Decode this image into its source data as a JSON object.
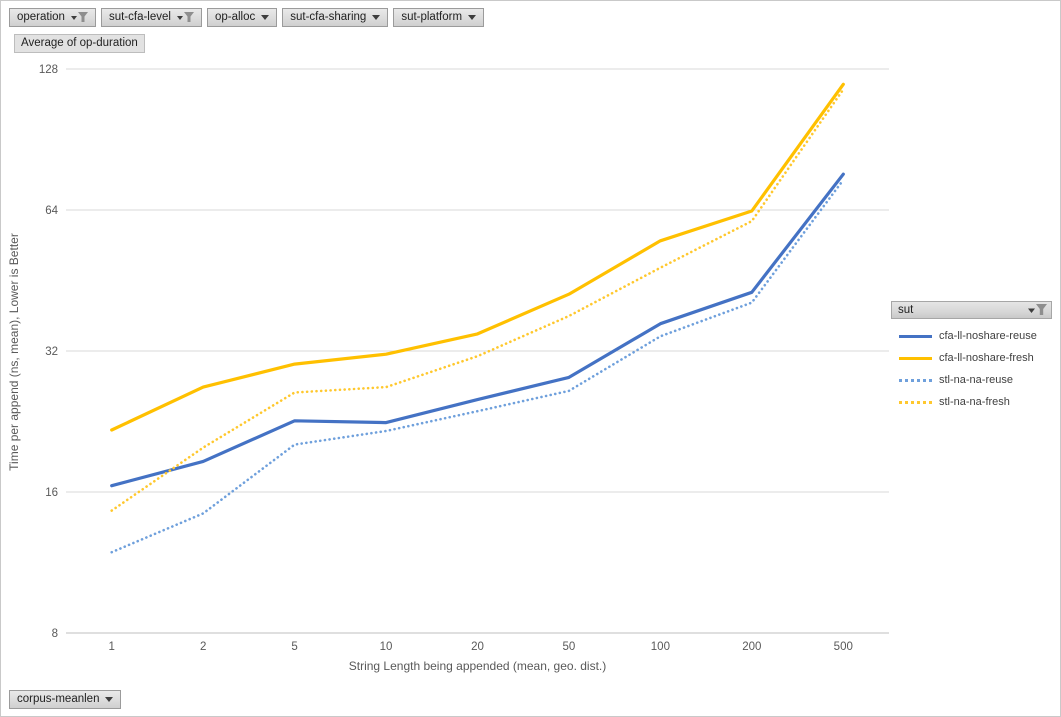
{
  "filter_bar": {
    "buttons": [
      {
        "label": "operation",
        "filtered": true
      },
      {
        "label": "sut-cfa-level",
        "filtered": true
      },
      {
        "label": "op-alloc",
        "filtered": false
      },
      {
        "label": "sut-cfa-sharing",
        "filtered": false
      },
      {
        "label": "sut-platform",
        "filtered": false
      }
    ]
  },
  "value_button": {
    "label": "Average of op-duration"
  },
  "bottom_filter": {
    "label": "corpus-meanlen"
  },
  "legend": {
    "header": "sut",
    "items": [
      {
        "label": "cfa-ll-noshare-reuse",
        "color": "#4472C4",
        "style": "solid"
      },
      {
        "label": "cfa-ll-noshare-fresh",
        "color": "#FFC000",
        "style": "solid"
      },
      {
        "label": "stl-na-na-reuse",
        "color": "#6FA0DC",
        "style": "dotted"
      },
      {
        "label": "stl-na-na-fresh",
        "color": "#FFC82E",
        "style": "dotted"
      }
    ]
  },
  "chart_data": {
    "type": "line",
    "title": "",
    "xlabel": "String Length  being appended (mean, geo.  dist.)",
    "ylabel": "Time per append (ns, mean),  Lower is Better",
    "x_scale": "category",
    "y_scale": "log2",
    "ylim": [
      8,
      128
    ],
    "yticks": [
      8,
      16,
      32,
      64,
      128
    ],
    "grid": "horizontal",
    "legend_position": "right",
    "categories": [
      "1",
      "2",
      "5",
      "10",
      "20",
      "50",
      "100",
      "200",
      "500"
    ],
    "series": [
      {
        "name": "cfa-ll-noshare-reuse",
        "color": "#4472C4",
        "dash": "solid",
        "values": [
          16.5,
          18.6,
          22.7,
          22.5,
          25.2,
          28.1,
          36.6,
          42.7,
          76.3
        ]
      },
      {
        "name": "cfa-ll-noshare-fresh",
        "color": "#FFC000",
        "dash": "solid",
        "values": [
          21.7,
          26.8,
          30.0,
          31.5,
          34.8,
          42.3,
          55.0,
          63.7,
          118.7
        ]
      },
      {
        "name": "stl-na-na-reuse",
        "color": "#6FA0DC",
        "dash": "dotted",
        "values": [
          11.9,
          14.4,
          20.2,
          21.6,
          23.8,
          26.3,
          34.4,
          40.6,
          74.2
        ]
      },
      {
        "name": "stl-na-na-fresh",
        "color": "#FFC82E",
        "dash": "dotted",
        "values": [
          14.6,
          19.9,
          26.1,
          26.8,
          31.2,
          38.0,
          48.2,
          60.6,
          115.8
        ]
      }
    ],
    "colors": {
      "grid": "#D9D9D9",
      "axis": "#BFBFBF",
      "tick_text": "#595959"
    }
  },
  "layout_note": ""
}
